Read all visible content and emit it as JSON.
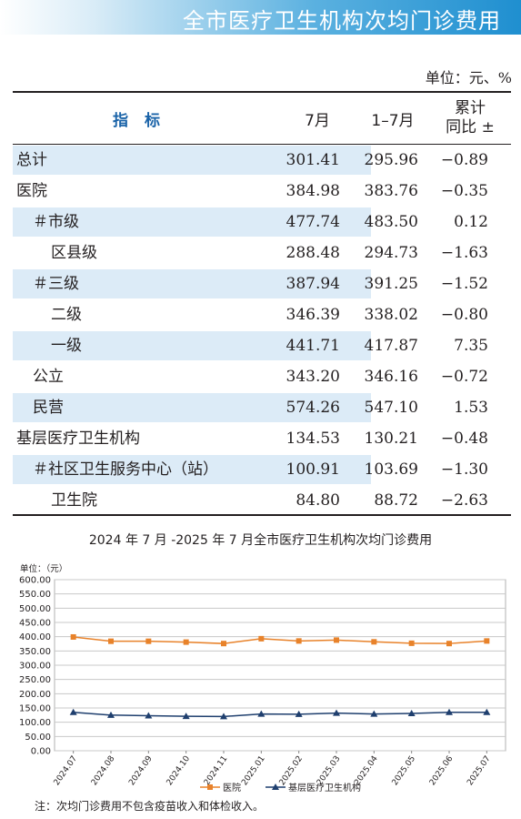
{
  "header": {
    "title": "全市医疗卫生机构次均门诊费用"
  },
  "unit_label": "单位：元、%",
  "table": {
    "headers": {
      "indicator": "指标",
      "month": "7月",
      "cumulative": "1–7月",
      "yoy_line1": "累计",
      "yoy_line2": "同比 ±"
    },
    "rows": [
      {
        "name": "总计",
        "month": "301.41",
        "cumulative": "295.96",
        "yoy": "−0.89",
        "indent": 0,
        "shade": true
      },
      {
        "name": "医院",
        "month": "384.98",
        "cumulative": "383.76",
        "yoy": "−0.35",
        "indent": 0,
        "shade": false
      },
      {
        "name": "＃市级",
        "month": "477.74",
        "cumulative": "483.50",
        "yoy": "0.12",
        "indent": 1,
        "shade": true
      },
      {
        "name": "区县级",
        "month": "288.48",
        "cumulative": "294.73",
        "yoy": "−1.63",
        "indent": 2,
        "shade": false
      },
      {
        "name": "＃三级",
        "month": "387.94",
        "cumulative": "391.25",
        "yoy": "−1.52",
        "indent": 1,
        "shade": true
      },
      {
        "name": "二级",
        "month": "346.39",
        "cumulative": "338.02",
        "yoy": "−0.80",
        "indent": 2,
        "shade": false
      },
      {
        "name": "一级",
        "month": "441.71",
        "cumulative": "417.87",
        "yoy": "7.35",
        "indent": 2,
        "shade": true
      },
      {
        "name": "公立",
        "month": "343.20",
        "cumulative": "346.16",
        "yoy": "−0.72",
        "indent": 1,
        "shade": false
      },
      {
        "name": "民营",
        "month": "574.26",
        "cumulative": "547.10",
        "yoy": "1.53",
        "indent": 1,
        "shade": true
      },
      {
        "name": "基层医疗卫生机构",
        "month": "134.53",
        "cumulative": "130.21",
        "yoy": "−0.48",
        "indent": 0,
        "shade": false
      },
      {
        "name": "＃社区卫生服务中心（站）",
        "month": "100.91",
        "cumulative": "103.69",
        "yoy": "−1.30",
        "indent": 1,
        "shade": true
      },
      {
        "name": "卫生院",
        "month": "84.80",
        "cumulative": "88.72",
        "yoy": "−2.63",
        "indent": 2,
        "shade": false
      }
    ]
  },
  "chart_data": {
    "type": "line",
    "title": "2024 年 7 月 -2025 年 7 月全市医疗卫生机构次均门诊费用",
    "unit_label": "单位：（元）",
    "categories": [
      "2024.07",
      "2024.08",
      "2024.09",
      "2024.10",
      "2024.11",
      "2025.01",
      "2025.02",
      "2025.03",
      "2025.04",
      "2025.05",
      "2025.06",
      "2025.07"
    ],
    "ylim": [
      0,
      600
    ],
    "y_ticks": [
      "0.00",
      "50.00",
      "100.00",
      "150.00",
      "200.00",
      "250.00",
      "300.00",
      "350.00",
      "400.00",
      "450.00",
      "500.00",
      "550.00",
      "600.00"
    ],
    "grid": true,
    "legend_position": "bottom",
    "series": [
      {
        "name": "医院",
        "color": "#e8822a",
        "marker": "square",
        "values": [
          399,
          384,
          384,
          381,
          376,
          393,
          385,
          388,
          382,
          377,
          376,
          385
        ]
      },
      {
        "name": "基层医疗卫生机构",
        "color": "#1f3f6e",
        "marker": "triangle",
        "values": [
          135,
          125,
          123,
          121,
          120,
          129,
          128,
          132,
          129,
          131,
          135,
          135
        ]
      }
    ]
  },
  "note": "注：次均门诊费用不包含疫苗收入和体检收入。"
}
